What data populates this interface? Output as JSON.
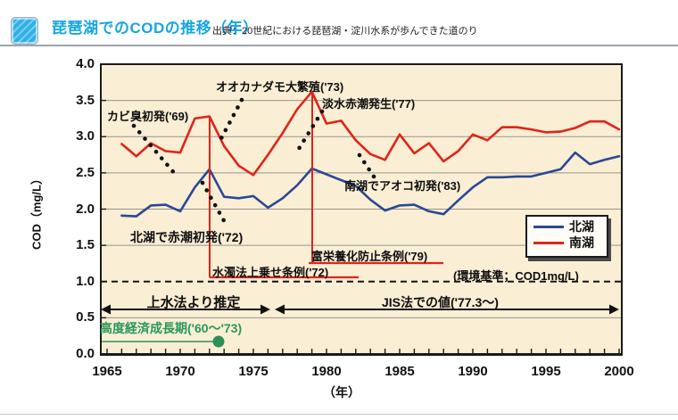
{
  "header": {
    "title": "琵琶湖でのCODの推移（年）",
    "source": "出典：20世紀における琵琶湖・淀川水系が歩んできた道のり"
  },
  "chart_data": {
    "type": "line",
    "title": "琵琶湖でのCODの推移（年）",
    "xlabel": "（年）",
    "ylabel": "COD（mg/L）",
    "xlim": [
      1965,
      2000.5
    ],
    "ylim": [
      0.0,
      4.0
    ],
    "grid": "horizontal",
    "legend_position": "inside-right",
    "x_ticks": [
      1965,
      1970,
      1975,
      1980,
      1985,
      1990,
      1995,
      2000
    ],
    "y_ticks": [
      "4.0",
      "3.5",
      "3.0",
      "2.5",
      "2.0",
      "1.5",
      "1.0",
      "0.5",
      "0.0"
    ],
    "years": [
      1966,
      1967,
      1968,
      1969,
      1970,
      1971,
      1972,
      1973,
      1974,
      1975,
      1976,
      1977,
      1978,
      1979,
      1980,
      1981,
      1982,
      1983,
      1984,
      1985,
      1986,
      1987,
      1988,
      1989,
      1990,
      1991,
      1992,
      1993,
      1994,
      1995,
      1996,
      1997,
      1998,
      1999,
      2000
    ],
    "series": [
      {
        "name": "北湖",
        "color": "#2a4896",
        "values": [
          1.91,
          1.9,
          2.05,
          2.06,
          1.97,
          2.3,
          2.55,
          2.17,
          2.15,
          2.18,
          2.02,
          2.15,
          2.33,
          2.56,
          2.48,
          2.4,
          2.32,
          2.13,
          1.98,
          2.05,
          2.06,
          1.97,
          1.93,
          2.12,
          2.3,
          2.44,
          2.44,
          2.45,
          2.45,
          2.5,
          2.55,
          2.78,
          2.62,
          2.68,
          2.73
        ]
      },
      {
        "name": "南湖",
        "color": "#e02418",
        "values": [
          2.9,
          2.73,
          2.91,
          2.8,
          2.78,
          3.25,
          3.28,
          2.87,
          2.6,
          2.47,
          2.75,
          3.05,
          3.38,
          3.62,
          3.18,
          3.22,
          2.95,
          2.76,
          2.68,
          3.03,
          2.77,
          2.91,
          2.66,
          2.8,
          3.03,
          2.95,
          3.13,
          3.13,
          3.1,
          3.06,
          3.07,
          3.12,
          3.21,
          3.21,
          3.1
        ]
      }
    ],
    "reference_line": {
      "value": 1.0,
      "label": "(環境基準；COD1mg/L)",
      "style": "dashed"
    },
    "event_annotations": [
      {
        "text": "カビ臭初発('69)",
        "year": 1969
      },
      {
        "text": "オオカナダモ大繁殖('73)",
        "year": 1973
      },
      {
        "text": "淡水赤潮発生('77)",
        "year": 1977
      },
      {
        "text": "南湖でアオコ初発('83)",
        "year": 1983
      },
      {
        "text": "北湖で赤潮初発('72)",
        "year": 1972
      }
    ],
    "regulation_annotations": [
      {
        "text": "水濁法上乗せ条例('72)",
        "year": 1972,
        "color": "#e02418"
      },
      {
        "text": "富栄養化防止条例('79)",
        "year": 1979,
        "color": "#e02418"
      }
    ],
    "period_annotations": [
      {
        "text": "上水法より推定",
        "range": [
          1965,
          1976.5
        ]
      },
      {
        "text": "JIS法での値('77.3～)",
        "range": [
          1976.5,
          2000.5
        ]
      },
      {
        "text": "高度経済成長期('60～'73)",
        "range": [
          1960,
          1973
        ],
        "color": "#27985b"
      }
    ],
    "colors": {
      "plot_background": "#faeed5",
      "title_blue": "#17a6e2",
      "gridline": "#97948a"
    }
  }
}
